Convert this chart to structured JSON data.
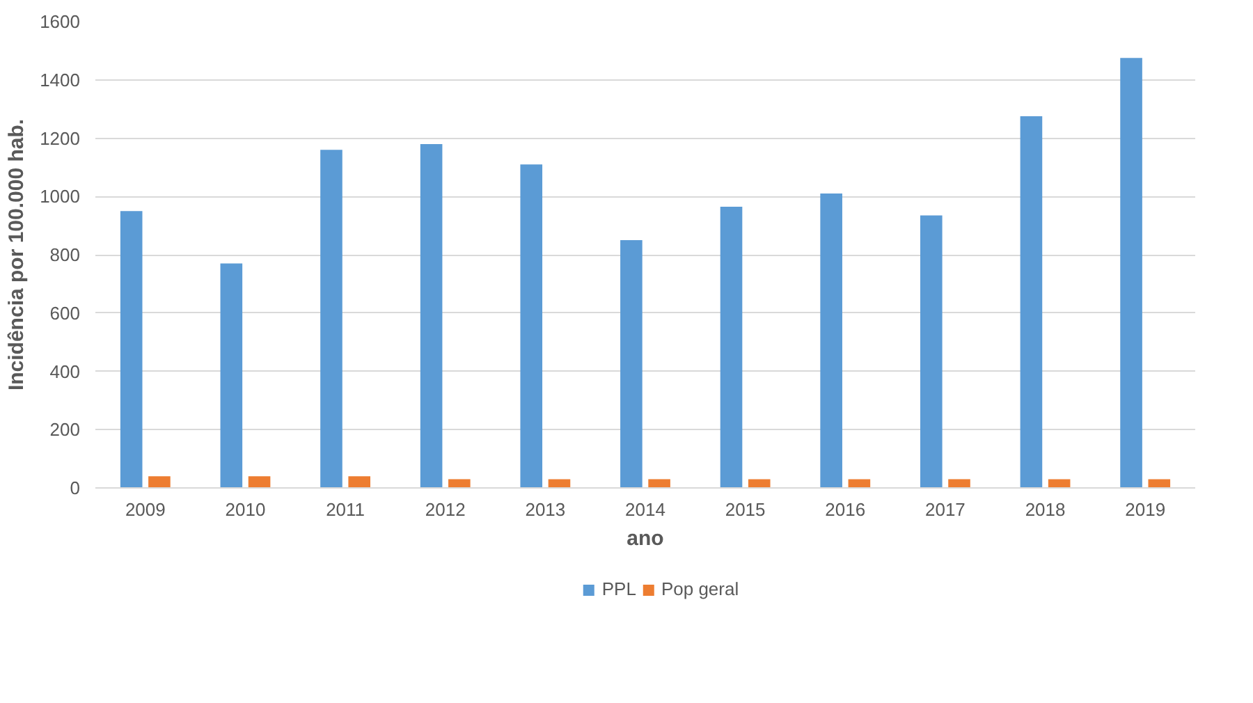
{
  "chart_data": {
    "type": "bar",
    "xlabel": "ano",
    "ylabel": "Incidência por 100.000 hab.",
    "categories": [
      "2009",
      "2010",
      "2011",
      "2012",
      "2013",
      "2014",
      "2015",
      "2016",
      "2017",
      "2018",
      "2019"
    ],
    "series": [
      {
        "name": "PPL",
        "color": "#5b9bd5",
        "values": [
          950,
          770,
          1160,
          1180,
          1110,
          850,
          965,
          1010,
          935,
          1275,
          1475
        ]
      },
      {
        "name": "Pop geral",
        "color": "#ed7d31",
        "values": [
          40,
          40,
          40,
          30,
          30,
          30,
          30,
          30,
          30,
          30,
          30
        ]
      }
    ],
    "ylim": [
      0,
      1600
    ],
    "yticks": [
      0,
      200,
      400,
      600,
      800,
      1000,
      1200,
      1400,
      1600
    ],
    "grid": "y",
    "legend": "bottom"
  }
}
